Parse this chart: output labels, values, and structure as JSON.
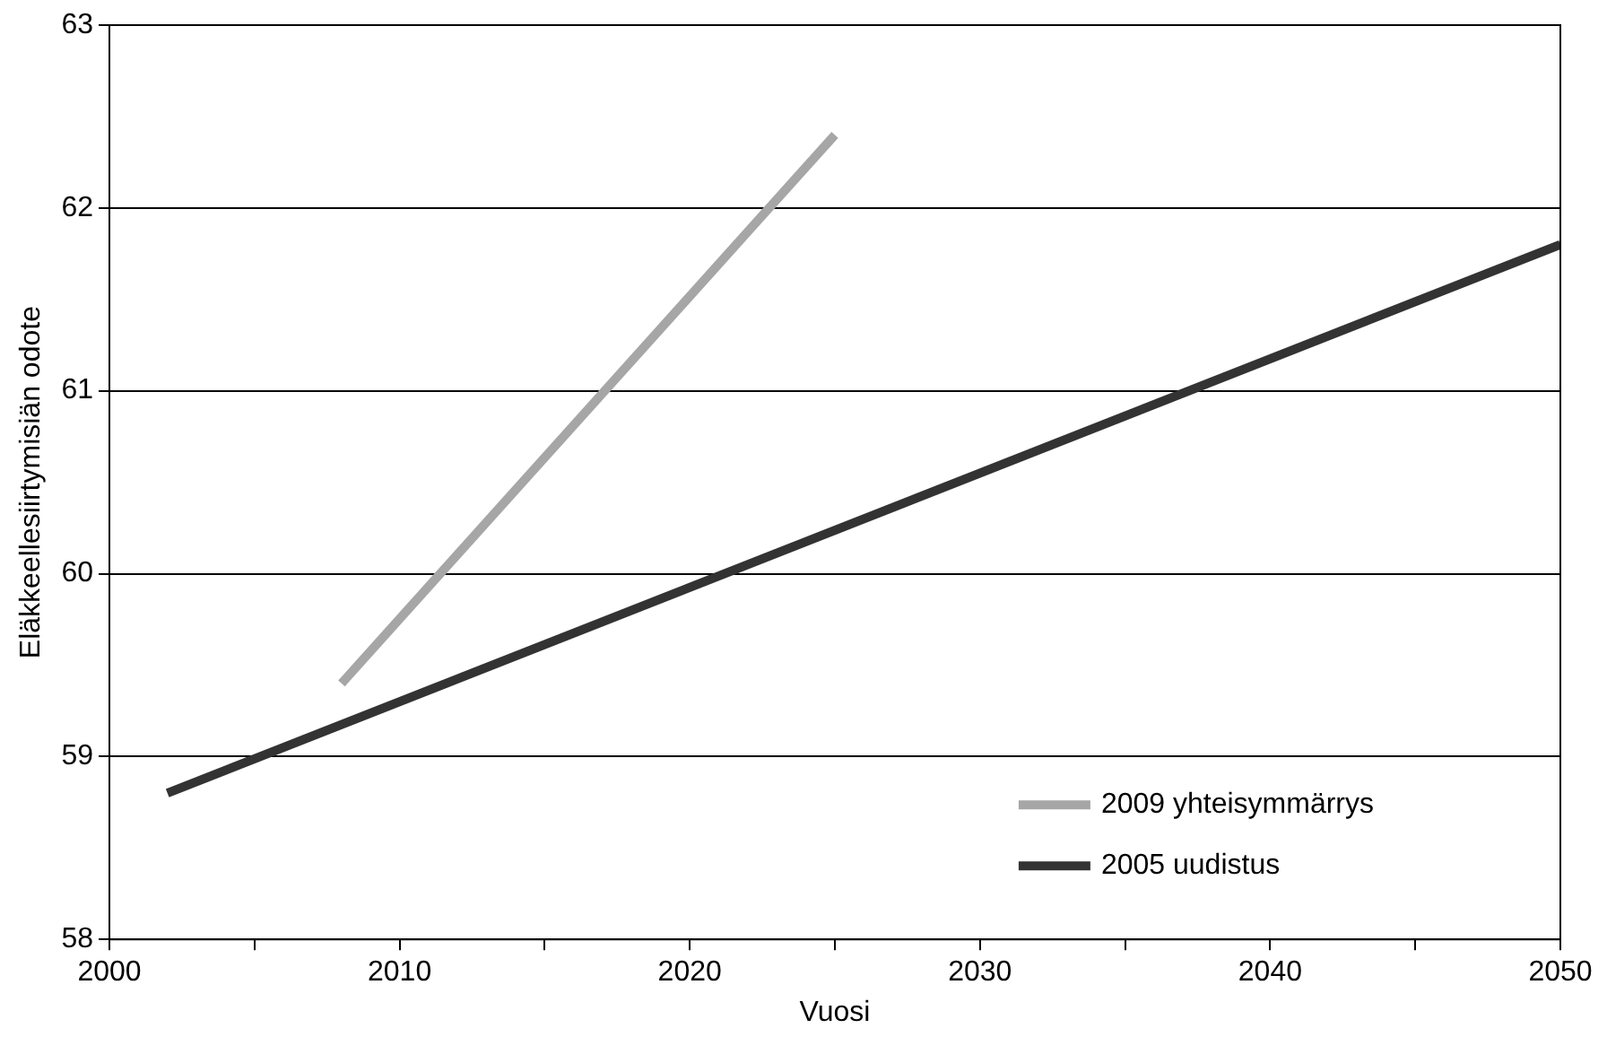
{
  "chart_data": {
    "type": "line",
    "xlabel": "Vuosi",
    "ylabel": "Eläkkeellesiirtymisiän odote",
    "series": [
      {
        "name": "2009 yhteisymmärrys",
        "color": "#a6a6a6",
        "x": [
          2008,
          2025
        ],
        "values": [
          59.4,
          62.4
        ]
      },
      {
        "name": "2005 uudistus",
        "color": "#333333",
        "x": [
          2002,
          2050
        ],
        "values": [
          58.8,
          61.8
        ]
      }
    ],
    "xlim": [
      2000,
      2050
    ],
    "xticks": [
      2000,
      {
        "value": 2005,
        "label": null
      },
      2010,
      {
        "value": 2015,
        "label": null
      },
      2020,
      {
        "value": 2025,
        "label": null
      },
      2030,
      {
        "value": 2035,
        "label": null
      },
      2040,
      {
        "value": 2045,
        "label": null
      },
      2050
    ],
    "ylim": [
      58,
      63
    ],
    "yticks": [
      58,
      59,
      60,
      61,
      62,
      63
    ],
    "grid": "y",
    "legend": "bottom right",
    "marker": "none",
    "line_style": "solid"
  }
}
